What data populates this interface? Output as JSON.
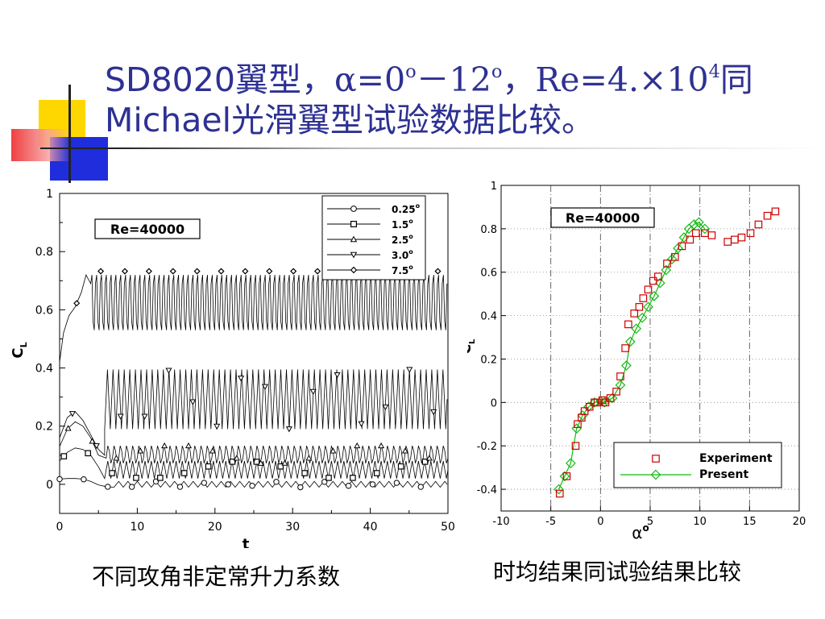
{
  "slide": {
    "title_line1_a": "SD8020翼型，",
    "title_alpha": "α",
    "title_eq0": "=0",
    "title_deg": "o",
    "title_dash12": "－12",
    "title_comma": "，",
    "title_re": "Re=4.×10",
    "title_exp": "4",
    "title_tong": "同",
    "title_line2": "Michael光滑翼型试验数据比较。",
    "caption_left": "不同攻角非定常升力系数",
    "caption_right": "时均结果同试验结果比较",
    "colors": {
      "title": "#2e3192",
      "experiment": "#cc0000",
      "present": "#11bb11",
      "deco_yellow": "#ffd700",
      "deco_blue": "#1f2ddc",
      "deco_red": "#ee2b2b"
    }
  },
  "chart_data": [
    {
      "type": "line",
      "xlabel": "t",
      "ylabel": "C",
      "ylabel_sub": "L",
      "xlim": [
        0,
        50
      ],
      "ylim": [
        -0.1,
        1
      ],
      "xticks": [
        0,
        10,
        20,
        30,
        40,
        50
      ],
      "xtick_labels": [
        "0",
        "10",
        "20",
        "30",
        "40",
        "50"
      ],
      "yticks": [
        0,
        0.2,
        0.4,
        0.6,
        0.8,
        1
      ],
      "ytick_labels": [
        "0",
        "0.2",
        "0.4",
        "0.6",
        "0.8",
        "1"
      ],
      "annotation": "Re=40000",
      "legend_position": "top-right",
      "series": [
        {
          "name": "0.25",
          "marker": "circle",
          "transient": [
            [
              0,
              0.018
            ],
            [
              1,
              0.02
            ],
            [
              2,
              0.02
            ],
            [
              3,
              0.018
            ],
            [
              4,
              0.01
            ],
            [
              5,
              -0.002
            ],
            [
              6,
              -0.008
            ],
            [
              7,
              -0.01
            ]
          ],
          "osc_start": 7,
          "osc_min": -0.01,
          "osc_max": 0.01,
          "period": 1.2
        },
        {
          "name": "1.5",
          "marker": "square",
          "transient": [
            [
              0,
              0.08
            ],
            [
              1,
              0.11
            ],
            [
              2,
              0.125
            ],
            [
              3,
              0.12
            ],
            [
              4,
              0.1
            ],
            [
              5,
              0.06
            ],
            [
              5.8,
              0.02
            ]
          ],
          "osc_start": 5.8,
          "osc_min": 0.02,
          "osc_max": 0.08,
          "period": 0.8
        },
        {
          "name": "2.5",
          "marker": "triangle",
          "transient": [
            [
              0,
              0.13
            ],
            [
              1,
              0.19
            ],
            [
              2,
              0.215
            ],
            [
              3,
              0.2
            ],
            [
              4,
              0.16
            ],
            [
              5,
              0.1
            ],
            [
              6,
              0.09
            ]
          ],
          "osc_start": 6,
          "osc_min": 0.07,
          "osc_max": 0.135,
          "period": 0.8
        },
        {
          "name": "3.0",
          "marker": "tri-down",
          "transient": [
            [
              0,
              0.16
            ],
            [
              1,
              0.23
            ],
            [
              2,
              0.25
            ],
            [
              3,
              0.22
            ],
            [
              4,
              0.17
            ],
            [
              5,
              0.12
            ],
            [
              5.8,
              0.1
            ]
          ],
          "osc_start": 5.8,
          "osc_min": 0.19,
          "osc_max": 0.395,
          "period": 0.72
        },
        {
          "name": "7.5",
          "marker": "diamond",
          "transient": [
            [
              0,
              0.42
            ],
            [
              0.5,
              0.52
            ],
            [
              1.2,
              0.58
            ],
            [
              2,
              0.61
            ],
            [
              2.8,
              0.66
            ],
            [
              3.4,
              0.72
            ],
            [
              4,
              0.69
            ]
          ],
          "osc_start": 4,
          "osc_min": 0.51,
          "osc_max": 0.74,
          "period": 0.62
        }
      ]
    },
    {
      "type": "scatter",
      "xlabel": "α",
      "xlabel_sup": "o",
      "ylabel": "C",
      "ylabel_sub": "L",
      "xlim": [
        -10,
        20
      ],
      "ylim": [
        -0.5,
        1
      ],
      "xticks": [
        -10,
        -5,
        0,
        5,
        10,
        15,
        20
      ],
      "xtick_labels": [
        "-10",
        "-5",
        "0",
        "5",
        "10",
        "15",
        "20"
      ],
      "yticks": [
        -0.4,
        -0.2,
        0,
        0.2,
        0.4,
        0.6,
        0.8,
        1
      ],
      "ytick_labels": [
        "-0.4",
        "-0.2",
        "0",
        "0.2",
        "0.4",
        "0.6",
        "0.8",
        "1"
      ],
      "grid": true,
      "annotation": "Re=40000",
      "legend_position": "bottom-right",
      "series": [
        {
          "name": "Experiment",
          "marker": "square",
          "color": "#cc0000",
          "x": [
            -4.1,
            -3.4,
            -2.5,
            -2.3,
            -1.9,
            -1.6,
            -1.1,
            -0.6,
            -0.3,
            0.2,
            0.5,
            1.0,
            1.6,
            2.0,
            2.5,
            2.8,
            3.4,
            3.9,
            4.3,
            4.8,
            5.3,
            5.8,
            6.7,
            7.5,
            8.2,
            9.0,
            9.6,
            10.5,
            11.2,
            12.8,
            13.5,
            14.2,
            15.1,
            15.9,
            16.8,
            17.6
          ],
          "y": [
            -0.42,
            -0.34,
            -0.2,
            -0.1,
            -0.07,
            -0.04,
            -0.02,
            0.0,
            0.0,
            0.01,
            0.0,
            0.02,
            0.05,
            0.12,
            0.25,
            0.36,
            0.41,
            0.44,
            0.48,
            0.52,
            0.56,
            0.58,
            0.64,
            0.67,
            0.72,
            0.75,
            0.78,
            0.78,
            0.77,
            0.74,
            0.75,
            0.76,
            0.78,
            0.82,
            0.86,
            0.88
          ]
        },
        {
          "name": "Present",
          "marker": "diamond",
          "color": "#11bb11",
          "x": [
            -4.2,
            -3.6,
            -3.0,
            -2.4,
            -1.8,
            -1.2,
            -0.6,
            0.0,
            0.4,
            1.2,
            2.0,
            2.6,
            3.0,
            3.6,
            4.2,
            4.8,
            5.4,
            6.0,
            6.6,
            7.2,
            7.8,
            8.4,
            8.9,
            9.4,
            9.9,
            10.5
          ],
          "y": [
            -0.4,
            -0.34,
            -0.28,
            -0.12,
            -0.06,
            -0.02,
            0.0,
            0.005,
            0.0,
            0.02,
            0.08,
            0.17,
            0.28,
            0.34,
            0.39,
            0.44,
            0.49,
            0.55,
            0.61,
            0.66,
            0.71,
            0.76,
            0.8,
            0.82,
            0.83,
            0.8
          ]
        }
      ]
    }
  ]
}
